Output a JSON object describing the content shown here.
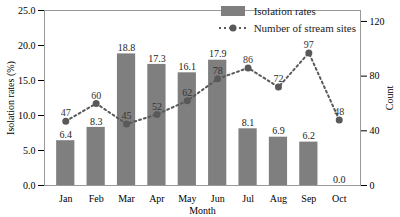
{
  "chart_data": {
    "type": "bar",
    "x_label": "Month",
    "y_label": "Isolation rates (%)",
    "y2_label": "Count",
    "categories": [
      "Jan",
      "Feb",
      "Mar",
      "Apr",
      "May",
      "Jun",
      "Jul",
      "Aug",
      "Sep",
      "Oct"
    ],
    "series": [
      {
        "name": "Isolation rates",
        "type": "bar",
        "color": "#7f7f7f",
        "values": [
          6.4,
          8.3,
          18.8,
          17.3,
          16.1,
          17.9,
          8.1,
          6.9,
          6.2,
          0.0
        ],
        "value_labels": [
          "6.4",
          "8.3",
          "18.8",
          "17.3",
          "16.1",
          "17.9",
          "8.1",
          "6.9",
          "6.2",
          "0.0"
        ]
      },
      {
        "name": "Number of stream sites",
        "type": "line",
        "axis": "y2",
        "color": "#595959",
        "marker": "circle",
        "line_style": "dotted",
        "values": [
          47,
          60,
          45,
          52,
          62,
          78,
          86,
          72,
          97,
          48
        ]
      }
    ],
    "ylim": [
      0,
      25
    ],
    "yticks": [
      {
        "value": 0,
        "label": "0.0"
      },
      {
        "value": 5,
        "label": "5.0"
      },
      {
        "value": 10,
        "label": "10.0"
      },
      {
        "value": 15,
        "label": "15.0"
      },
      {
        "value": 20,
        "label": "20.0"
      },
      {
        "value": 25,
        "label": "25.0"
      }
    ],
    "y2lim": [
      0,
      128
    ],
    "y2ticks": [
      0,
      40,
      80,
      120
    ],
    "data_labels": true,
    "legend": "top-right",
    "grid": false
  }
}
